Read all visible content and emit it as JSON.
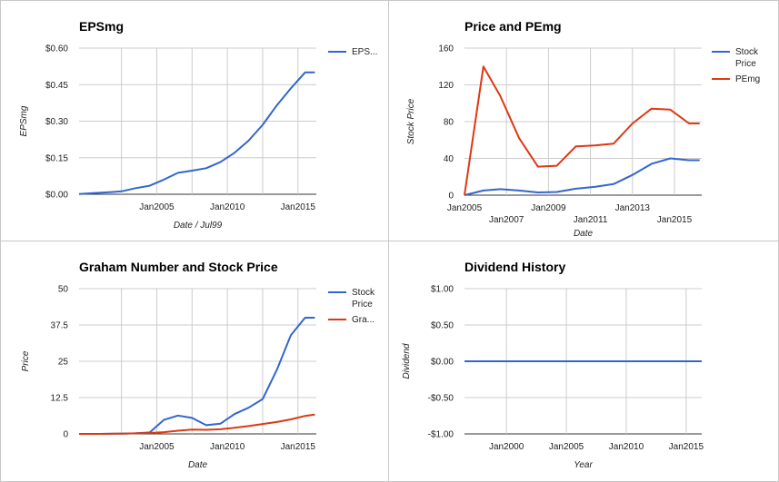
{
  "chart_data": [
    {
      "type": "line",
      "title": "EPSmg",
      "xlabel": "Date / Jul99",
      "ylabel": "EPSmg",
      "xlim": [
        1999.5,
        2016.3
      ],
      "ylim": [
        0,
        0.6
      ],
      "y_ticks": [
        {
          "v": 0,
          "label": "$0.00"
        },
        {
          "v": 0.15,
          "label": "$0.15"
        },
        {
          "v": 0.3,
          "label": "$0.30"
        },
        {
          "v": 0.45,
          "label": "$0.45"
        },
        {
          "v": 0.6,
          "label": "$0.60"
        }
      ],
      "x_ticks": [
        {
          "v": 2005,
          "label": "Jan2005"
        },
        {
          "v": 2010,
          "label": "Jan2010"
        },
        {
          "v": 2015,
          "label": "Jan2015"
        }
      ],
      "x_grid": [
        2002.5,
        2005,
        2007.5,
        2010,
        2012.5,
        2015
      ],
      "legend_position": "right",
      "series": [
        {
          "name": "EPS...",
          "color": "#3366cc",
          "x": [
            1999.5,
            2000.5,
            2001.5,
            2002.5,
            2003.5,
            2004.5,
            2005.5,
            2006.5,
            2007.5,
            2008.5,
            2009.5,
            2010.5,
            2011.5,
            2012.5,
            2013.5,
            2014.5,
            2015.5,
            2016.2
          ],
          "y": [
            0.001,
            0.005,
            0.008,
            0.012,
            0.025,
            0.035,
            0.06,
            0.088,
            0.097,
            0.107,
            0.132,
            0.17,
            0.22,
            0.285,
            0.365,
            0.435,
            0.5,
            0.5
          ]
        }
      ]
    },
    {
      "type": "line",
      "title": "Price and PEmg",
      "xlabel": "Date",
      "ylabel": "Stock Price",
      "xlim": [
        2005,
        2016.3
      ],
      "ylim": [
        0,
        160
      ],
      "y_ticks": [
        {
          "v": 0,
          "label": "0"
        },
        {
          "v": 40,
          "label": "40"
        },
        {
          "v": 80,
          "label": "80"
        },
        {
          "v": 120,
          "label": "120"
        },
        {
          "v": 160,
          "label": "160"
        }
      ],
      "x_ticks": [
        {
          "v": 2005,
          "label": "Jan2005",
          "row": 1
        },
        {
          "v": 2007,
          "label": "Jan2007",
          "row": 2
        },
        {
          "v": 2009,
          "label": "Jan2009",
          "row": 1
        },
        {
          "v": 2011,
          "label": "Jan2011",
          "row": 2
        },
        {
          "v": 2013,
          "label": "Jan2013",
          "row": 1
        },
        {
          "v": 2015,
          "label": "Jan2015",
          "row": 2
        }
      ],
      "x_grid": [
        2007,
        2009,
        2011,
        2013,
        2015
      ],
      "legend_position": "right",
      "series": [
        {
          "name": "Stock Price",
          "color": "#3366cc",
          "x": [
            2005,
            2005.9,
            2006.7,
            2007.6,
            2008.5,
            2009.4,
            2010.3,
            2011.2,
            2012.1,
            2013,
            2013.9,
            2014.8,
            2015.7,
            2016.2
          ],
          "y": [
            0,
            5,
            6.5,
            5,
            3,
            3.5,
            7,
            9,
            12,
            22,
            34,
            40,
            38,
            38
          ]
        },
        {
          "name": "PEmg",
          "color": "#dc3912",
          "x": [
            2005,
            2005.9,
            2006.7,
            2007.6,
            2008.5,
            2009.4,
            2010.3,
            2011.2,
            2012.1,
            2013,
            2013.9,
            2014.8,
            2015.7,
            2016.2
          ],
          "y": [
            0,
            140,
            108,
            62,
            31,
            32,
            53,
            54,
            56,
            78,
            94,
            93,
            78,
            78
          ]
        }
      ]
    },
    {
      "type": "line",
      "title": "Graham Number and Stock Price",
      "xlabel": "Date",
      "ylabel": "Price",
      "xlim": [
        1999.5,
        2016.3
      ],
      "ylim": [
        0,
        50
      ],
      "y_ticks": [
        {
          "v": 0,
          "label": "0"
        },
        {
          "v": 12.5,
          "label": "12.5"
        },
        {
          "v": 25,
          "label": "25"
        },
        {
          "v": 37.5,
          "label": "37.5"
        },
        {
          "v": 50,
          "label": "50"
        }
      ],
      "x_ticks": [
        {
          "v": 2005,
          "label": "Jan2005"
        },
        {
          "v": 2010,
          "label": "Jan2010"
        },
        {
          "v": 2015,
          "label": "Jan2015"
        }
      ],
      "x_grid": [
        2002.5,
        2005,
        2007.5,
        2010,
        2012.5,
        2015
      ],
      "legend_position": "right",
      "series": [
        {
          "name": "Stock Price",
          "color": "#3366cc",
          "x": [
            1999.5,
            2001,
            2002.5,
            2003.5,
            2004.5,
            2005.5,
            2006.5,
            2007.5,
            2008.5,
            2009.5,
            2010.5,
            2011.5,
            2012.5,
            2013.5,
            2014.5,
            2015.5,
            2016.2
          ],
          "y": [
            0,
            0,
            0.1,
            0.2,
            0.5,
            4.8,
            6.3,
            5.5,
            3.0,
            3.5,
            6.8,
            9.0,
            12.0,
            22.0,
            34.0,
            40.0,
            40.0
          ]
        },
        {
          "name": "Gra...",
          "color": "#dc3912",
          "x": [
            1999.5,
            2001,
            2002.5,
            2003.5,
            2004.5,
            2005.5,
            2006.5,
            2007.5,
            2008.5,
            2009.5,
            2010.5,
            2011.5,
            2012.5,
            2013.5,
            2014.5,
            2015.5,
            2016.2
          ],
          "y": [
            0,
            0,
            0.1,
            0.2,
            0.3,
            0.6,
            1.1,
            1.5,
            1.4,
            1.6,
            2.1,
            2.7,
            3.4,
            4.1,
            5.0,
            6.2,
            6.7
          ]
        }
      ]
    },
    {
      "type": "line",
      "title": "Dividend History",
      "xlabel": "Year",
      "ylabel": "Dividend",
      "xlim": [
        1996.5,
        2016.3
      ],
      "ylim": [
        -1,
        1
      ],
      "y_ticks": [
        {
          "v": -1,
          "label": "-$1.00"
        },
        {
          "v": -0.5,
          "label": "-$0.50"
        },
        {
          "v": 0,
          "label": "$0.00"
        },
        {
          "v": 0.5,
          "label": "$0.50"
        },
        {
          "v": 1,
          "label": "$1.00"
        }
      ],
      "x_ticks": [
        {
          "v": 2000,
          "label": "Jan2000"
        },
        {
          "v": 2005,
          "label": "Jan2005"
        },
        {
          "v": 2010,
          "label": "Jan2010"
        },
        {
          "v": 2015,
          "label": "Jan2015"
        }
      ],
      "x_grid": [
        2000,
        2005,
        2010,
        2015
      ],
      "legend_position": "none",
      "series": [
        {
          "name": "",
          "color": "#3366cc",
          "x": [
            1996.5,
            2016.3
          ],
          "y": [
            0,
            0
          ]
        }
      ]
    }
  ]
}
